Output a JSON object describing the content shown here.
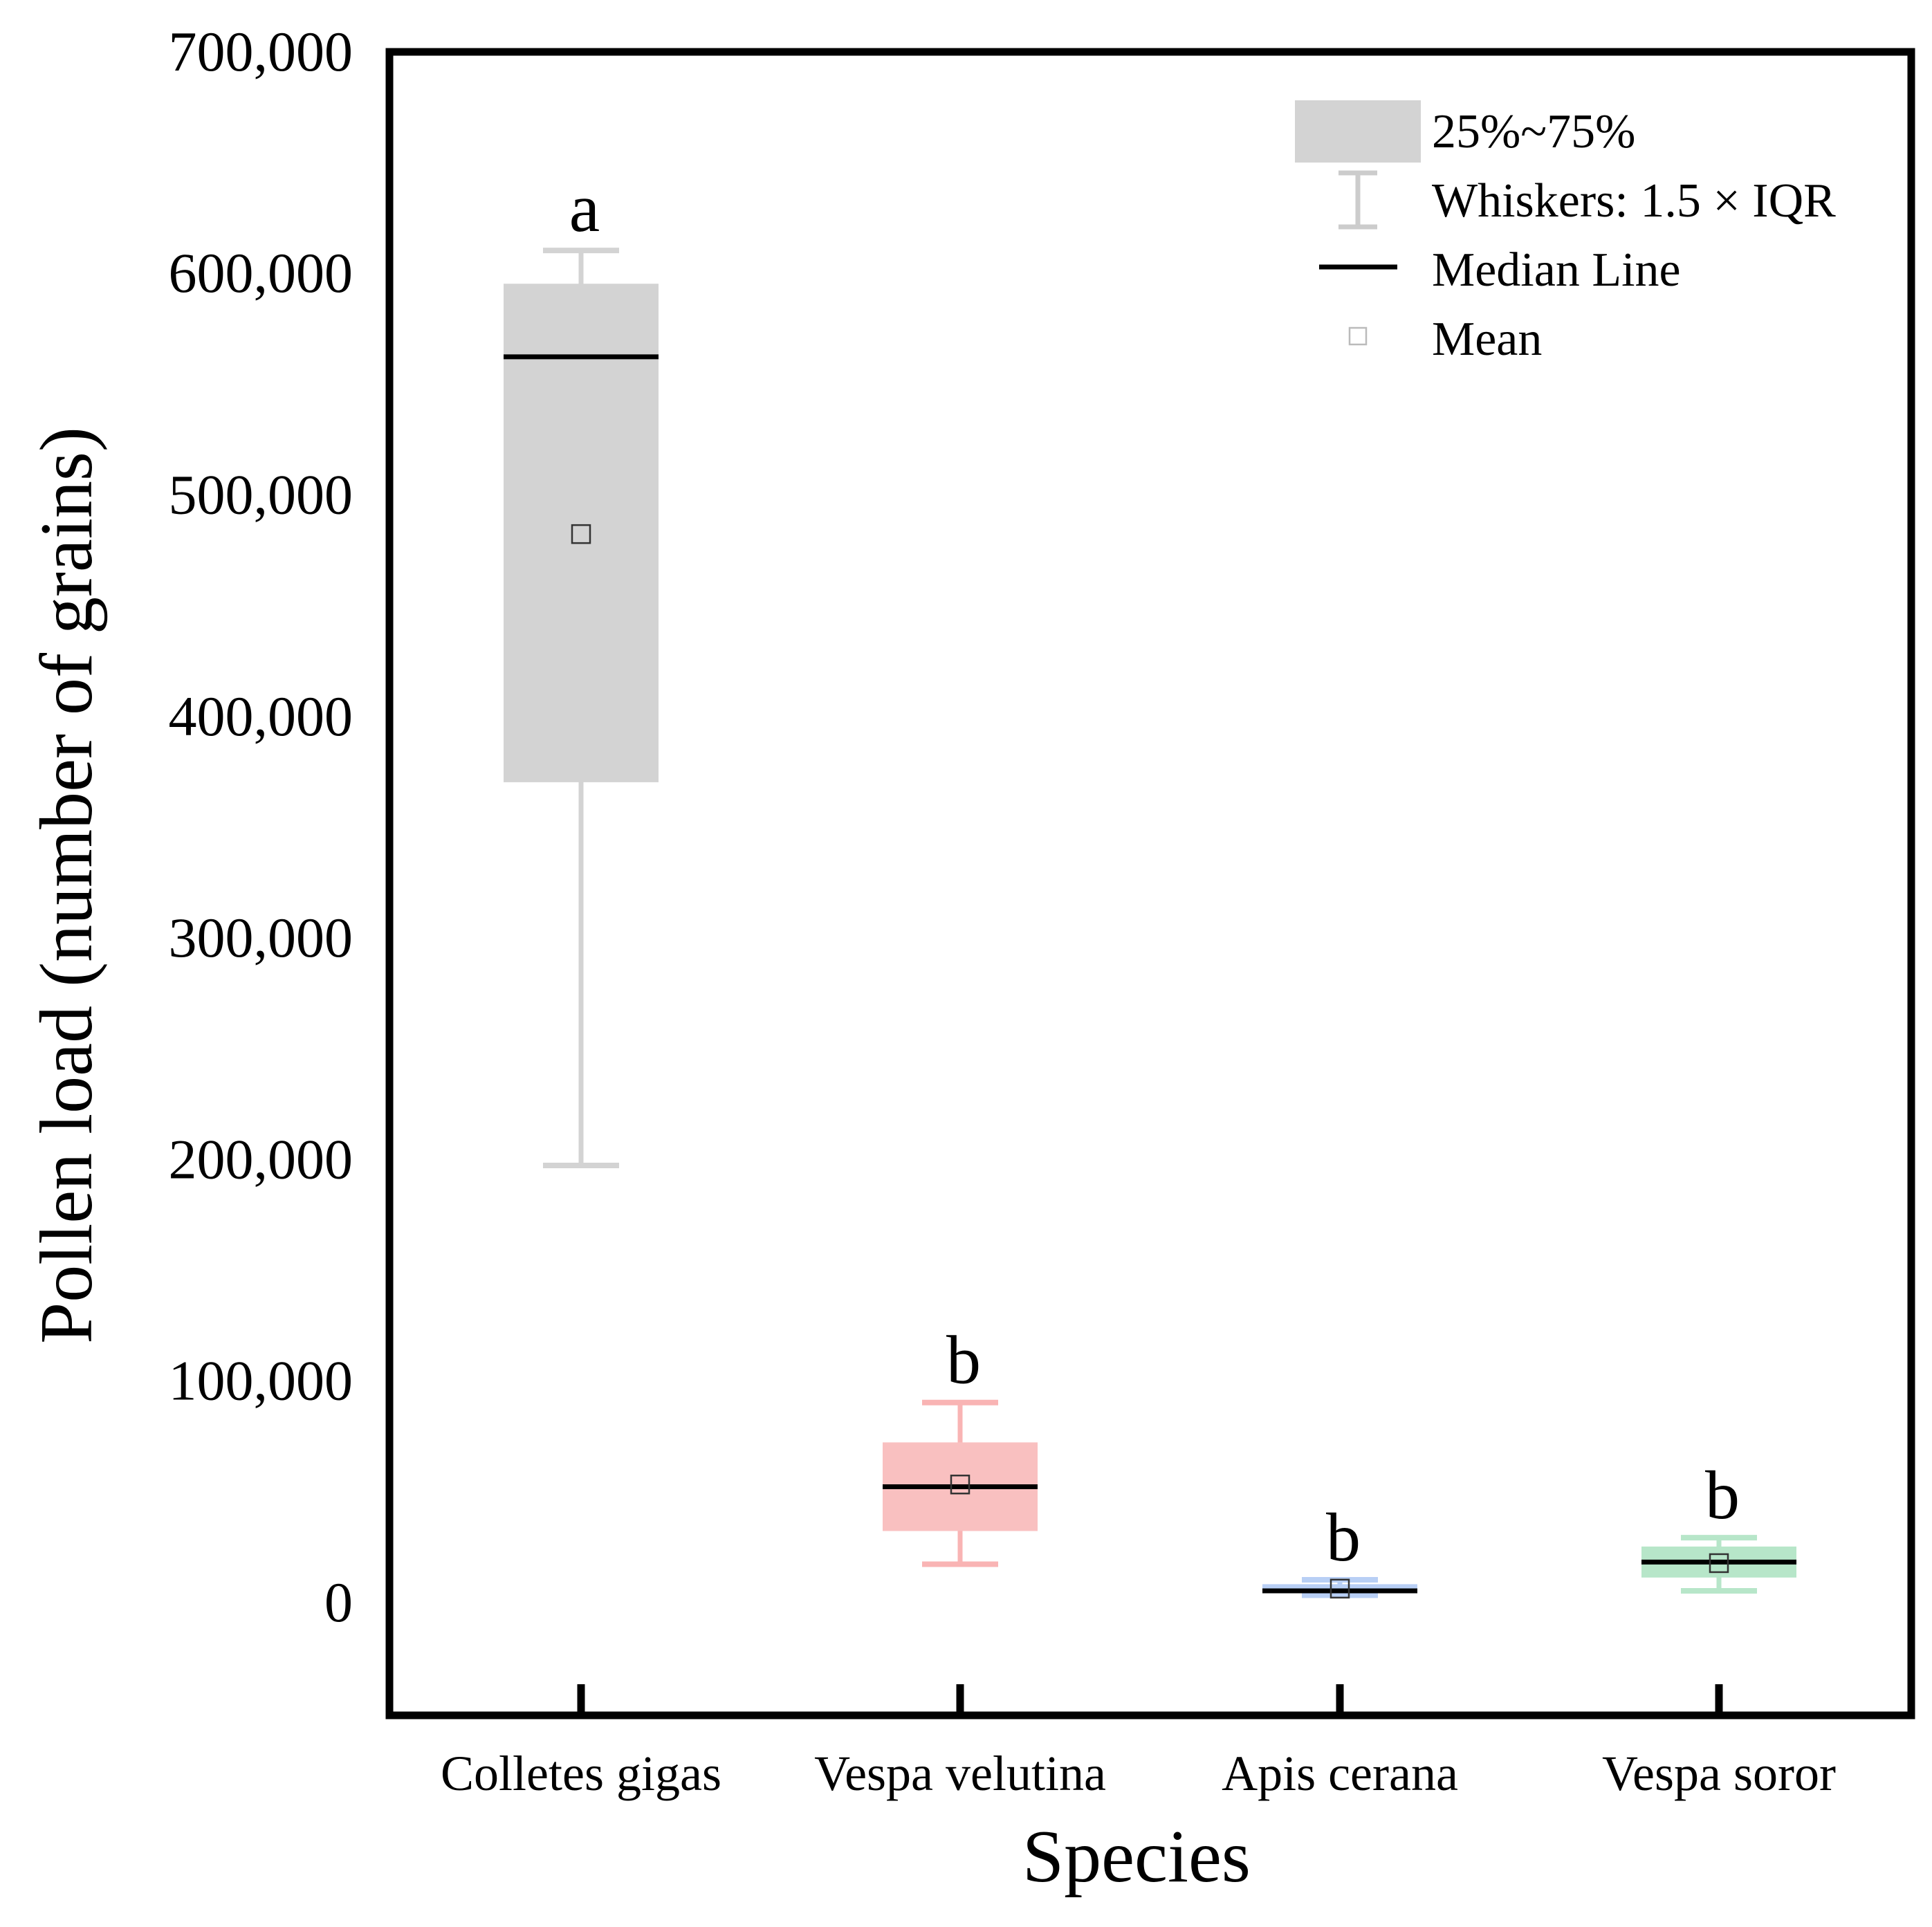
{
  "chart_data": {
    "type": "box",
    "title": "",
    "xlabel": "Species",
    "ylabel": "Pollen load (number of grains)",
    "ylim": [
      -50000,
      700000
    ],
    "yticks": [
      0,
      100000,
      200000,
      300000,
      400000,
      500000,
      600000,
      700000
    ],
    "ytick_labels": [
      "0",
      "100,000",
      "200,000",
      "300,000",
      "400,000",
      "500,000",
      "600,000",
      "700,000"
    ],
    "categories": [
      "Colletes gigas",
      "Vespa velutina",
      "Apis cerana",
      "Vespa soror"
    ],
    "series": [
      {
        "name": "Colletes gigas",
        "q1": 370000,
        "median": 562000,
        "q3": 595000,
        "whisker_low": 197000,
        "whisker_high": 610000,
        "mean": 482000,
        "sig": "a",
        "color": "#d3d3d3",
        "whisker_color": "#d3d3d3"
      },
      {
        "name": "Vespa velutina",
        "q1": 32000,
        "median": 52000,
        "q3": 72000,
        "whisker_low": 17000,
        "whisker_high": 90000,
        "mean": 53000,
        "sig": "b",
        "color": "#f9c0c0",
        "whisker_color": "#f9b4b4"
      },
      {
        "name": "Apis cerana",
        "q1": 4000,
        "median": 5000,
        "q3": 8000,
        "whisker_low": 3000,
        "whisker_high": 10000,
        "mean": 6000,
        "sig": "b",
        "color": "#b8cff5",
        "whisker_color": "#b8cff5"
      },
      {
        "name": "Vespa soror",
        "q1": 11000,
        "median": 18000,
        "q3": 25000,
        "whisker_low": 5000,
        "whisker_high": 29000,
        "mean": 17500,
        "sig": "b",
        "color": "#b7e6c9",
        "whisker_color": "#b7e6c9"
      }
    ],
    "legend": {
      "position": "top-right",
      "items": [
        {
          "label": "25%~75%",
          "kind": "box"
        },
        {
          "label": "Whiskers: 1.5 × IQR",
          "kind": "whisker"
        },
        {
          "label": "Median Line",
          "kind": "median"
        },
        {
          "label": "Mean",
          "kind": "mean"
        }
      ]
    },
    "colors": {
      "frame": "#000000",
      "median": "#000000",
      "mean_marker": "#333333",
      "legend_box": "#d3d3d3",
      "legend_whisker": "#cccccc",
      "legend_mean": "#bbbbbb"
    }
  }
}
